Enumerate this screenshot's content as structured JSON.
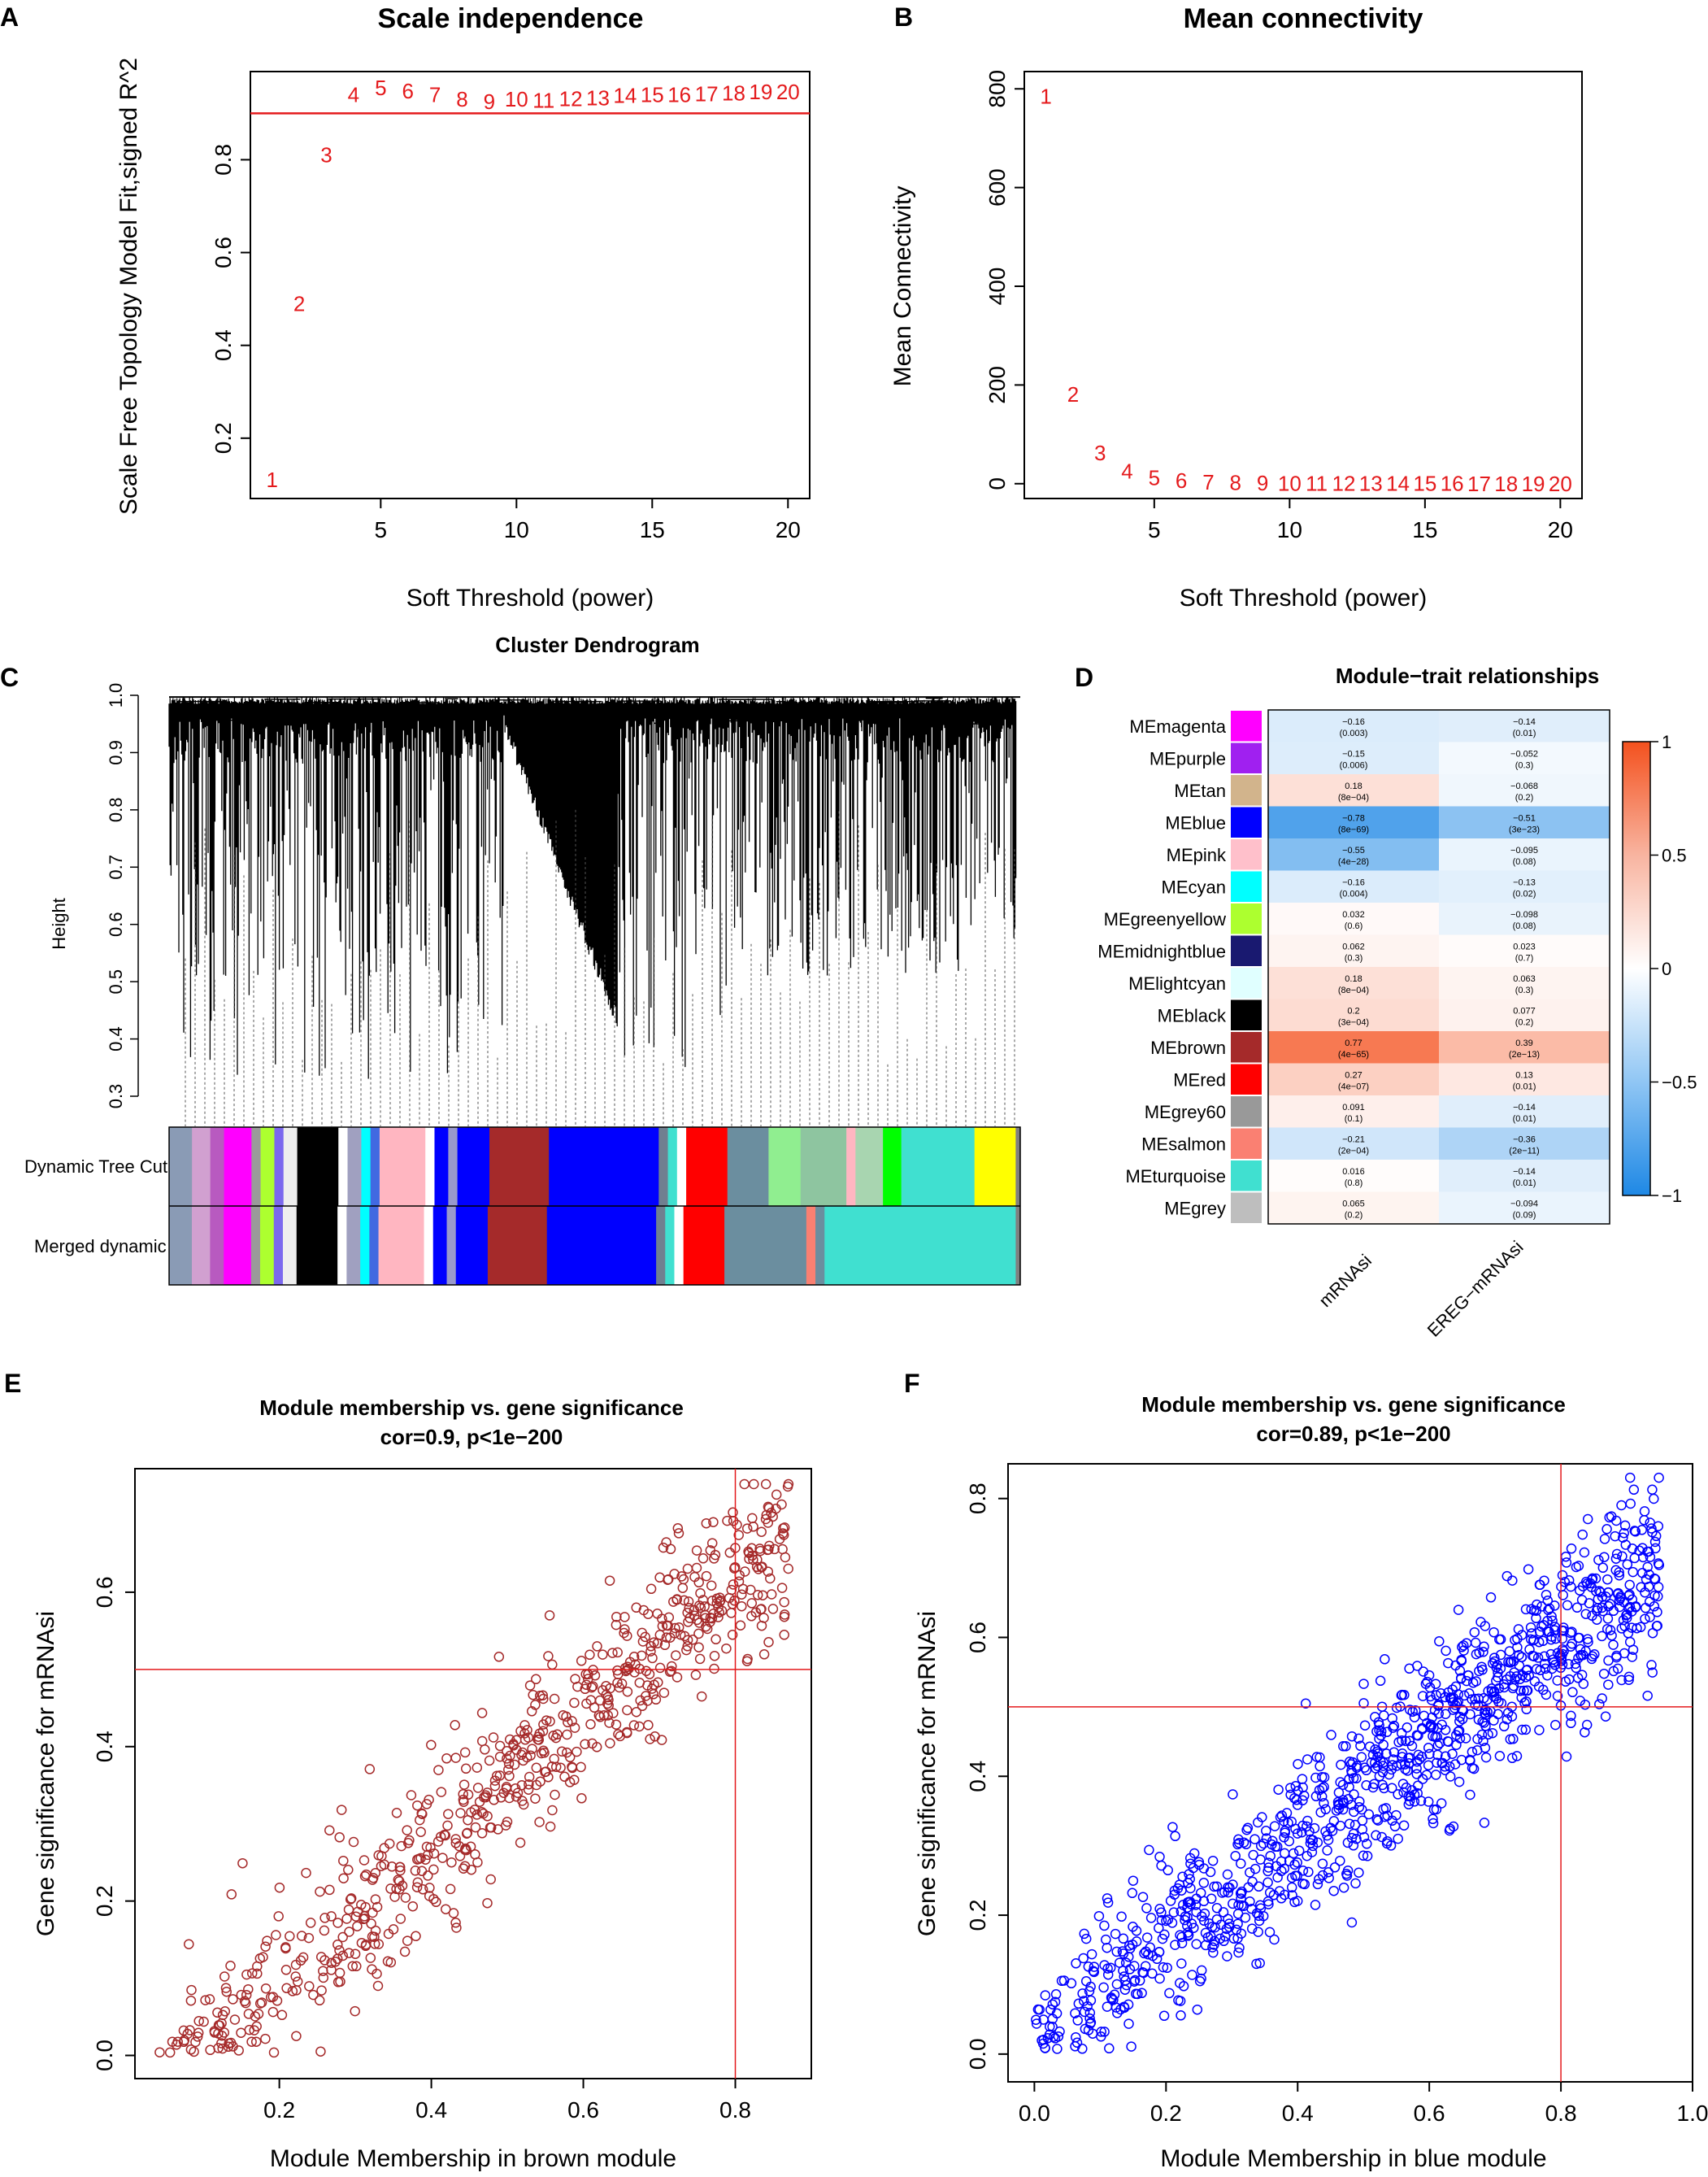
{
  "chart_data": [
    {
      "panel": "A",
      "type": "scatter",
      "title": "Scale independence",
      "xlabel": "Soft Threshold (power)",
      "ylabel": "Scale Free Topology Model Fit,signed R^2",
      "xticks": [
        5,
        10,
        15,
        20
      ],
      "yticks": [
        0.2,
        0.4,
        0.6,
        0.8
      ],
      "xlim": [
        0.2,
        20.8
      ],
      "ylim": [
        0.07,
        0.99
      ],
      "hline": 0.9,
      "points": [
        {
          "label": "1",
          "x": 1,
          "y": 0.11
        },
        {
          "label": "2",
          "x": 2,
          "y": 0.49
        },
        {
          "label": "3",
          "x": 3,
          "y": 0.81
        },
        {
          "label": "4",
          "x": 4,
          "y": 0.94
        },
        {
          "label": "5",
          "x": 5,
          "y": 0.955
        },
        {
          "label": "6",
          "x": 6,
          "y": 0.948
        },
        {
          "label": "7",
          "x": 7,
          "y": 0.94
        },
        {
          "label": "8",
          "x": 8,
          "y": 0.93
        },
        {
          "label": "9",
          "x": 9,
          "y": 0.925
        },
        {
          "label": "10",
          "x": 10,
          "y": 0.93
        },
        {
          "label": "11",
          "x": 11,
          "y": 0.928
        },
        {
          "label": "12",
          "x": 12,
          "y": 0.931
        },
        {
          "label": "13",
          "x": 13,
          "y": 0.933
        },
        {
          "label": "14",
          "x": 14,
          "y": 0.938
        },
        {
          "label": "15",
          "x": 15,
          "y": 0.94
        },
        {
          "label": "16",
          "x": 16,
          "y": 0.94
        },
        {
          "label": "17",
          "x": 17,
          "y": 0.942
        },
        {
          "label": "18",
          "x": 18,
          "y": 0.944
        },
        {
          "label": "19",
          "x": 19,
          "y": 0.946
        },
        {
          "label": "20",
          "x": 20,
          "y": 0.946
        }
      ]
    },
    {
      "panel": "B",
      "type": "scatter",
      "title": "Mean connectivity",
      "xlabel": "Soft Threshold (power)",
      "ylabel": "Mean Connectivity",
      "xticks": [
        5,
        10,
        15,
        20
      ],
      "yticks": [
        0,
        200,
        400,
        600,
        800
      ],
      "xlim": [
        0.2,
        20.8
      ],
      "ylim": [
        -30,
        835
      ],
      "points": [
        {
          "label": "1",
          "x": 1,
          "y": 785
        },
        {
          "label": "2",
          "x": 2,
          "y": 181
        },
        {
          "label": "3",
          "x": 3,
          "y": 62
        },
        {
          "label": "4",
          "x": 4,
          "y": 25
        },
        {
          "label": "5",
          "x": 5,
          "y": 12
        },
        {
          "label": "6",
          "x": 6,
          "y": 6
        },
        {
          "label": "7",
          "x": 7,
          "y": 3
        },
        {
          "label": "8",
          "x": 8,
          "y": 2
        },
        {
          "label": "9",
          "x": 9,
          "y": 1
        },
        {
          "label": "10",
          "x": 10,
          "y": 0.6
        },
        {
          "label": "11",
          "x": 11,
          "y": 0.4
        },
        {
          "label": "12",
          "x": 12,
          "y": 0.3
        },
        {
          "label": "13",
          "x": 13,
          "y": 0.2
        },
        {
          "label": "14",
          "x": 14,
          "y": 0.1
        },
        {
          "label": "15",
          "x": 15,
          "y": 0.1
        },
        {
          "label": "16",
          "x": 16,
          "y": 0.1
        },
        {
          "label": "17",
          "x": 17,
          "y": 0
        },
        {
          "label": "18",
          "x": 18,
          "y": 0
        },
        {
          "label": "19",
          "x": 19,
          "y": 0
        },
        {
          "label": "20",
          "x": 20,
          "y": 0
        }
      ]
    },
    {
      "panel": "C",
      "type": "other",
      "title": "Cluster Dendrogram",
      "ylabel": "Height",
      "yticks": [
        0.3,
        0.4,
        0.5,
        0.6,
        0.7,
        0.8,
        0.9,
        1.0
      ],
      "ylim": [
        0.3,
        1.0
      ],
      "color_rows": [
        "Dynamic Tree Cut",
        "Merged dynamic"
      ],
      "dynamic_segments": [
        {
          "color": "#8a9bb5",
          "w": 5
        },
        {
          "color": "#d1a0d0",
          "w": 4
        },
        {
          "color": "#b85ac0",
          "w": 3
        },
        {
          "color": "#ff00ff",
          "w": 6
        },
        {
          "color": "#9a9a9a",
          "w": 2
        },
        {
          "color": "#adff2f",
          "w": 3
        },
        {
          "color": "#7b68ee",
          "w": 2
        },
        {
          "color": "#eeeeee",
          "w": 3
        },
        {
          "color": "#000000",
          "w": 9
        },
        {
          "color": "#ffffff",
          "w": 2
        },
        {
          "color": "#a0a0c0",
          "w": 3
        },
        {
          "color": "#00ffff",
          "w": 2
        },
        {
          "color": "#4169e1",
          "w": 2
        },
        {
          "color": "#ffb6c1",
          "w": 10
        },
        {
          "color": "#ffffff",
          "w": 2
        },
        {
          "color": "#0000ff",
          "w": 3
        },
        {
          "color": "#9999cc",
          "w": 2
        },
        {
          "color": "#0000ff",
          "w": 7
        },
        {
          "color": "#a52a2a",
          "w": 13
        },
        {
          "color": "#0000ff",
          "w": 24
        },
        {
          "color": "#708090",
          "w": 2
        },
        {
          "color": "#40e0d0",
          "w": 2
        },
        {
          "color": "#ffffff",
          "w": 2
        },
        {
          "color": "#ff0000",
          "w": 9
        },
        {
          "color": "#6b8e9f",
          "w": 9
        },
        {
          "color": "#90ee90",
          "w": 7
        },
        {
          "color": "#8ec5a0",
          "w": 10
        },
        {
          "color": "#ffb6c1",
          "w": 2
        },
        {
          "color": "#a8d5b0",
          "w": 6
        },
        {
          "color": "#00ff00",
          "w": 4
        },
        {
          "color": "#40e0d0",
          "w": 16
        },
        {
          "color": "#ffff00",
          "w": 9
        },
        {
          "color": "#808080",
          "w": 1
        }
      ],
      "merged_segments": [
        {
          "color": "#8a9bb5",
          "w": 5
        },
        {
          "color": "#d1a0d0",
          "w": 4
        },
        {
          "color": "#b85ac0",
          "w": 3
        },
        {
          "color": "#ff00ff",
          "w": 6
        },
        {
          "color": "#9a9a9a",
          "w": 2
        },
        {
          "color": "#adff2f",
          "w": 3
        },
        {
          "color": "#7b68ee",
          "w": 2
        },
        {
          "color": "#eeeeee",
          "w": 3
        },
        {
          "color": "#000000",
          "w": 9
        },
        {
          "color": "#ffffff",
          "w": 2
        },
        {
          "color": "#a0a0c0",
          "w": 3
        },
        {
          "color": "#00ffff",
          "w": 2
        },
        {
          "color": "#4169e1",
          "w": 2
        },
        {
          "color": "#ffb6c1",
          "w": 10
        },
        {
          "color": "#ffffff",
          "w": 2
        },
        {
          "color": "#0000ff",
          "w": 3
        },
        {
          "color": "#9999cc",
          "w": 2
        },
        {
          "color": "#0000ff",
          "w": 7
        },
        {
          "color": "#a52a2a",
          "w": 13
        },
        {
          "color": "#0000ff",
          "w": 24
        },
        {
          "color": "#708090",
          "w": 2
        },
        {
          "color": "#40e0d0",
          "w": 2
        },
        {
          "color": "#ffffff",
          "w": 2
        },
        {
          "color": "#ff0000",
          "w": 9
        },
        {
          "color": "#6b8e9f",
          "w": 18
        },
        {
          "color": "#fa8072",
          "w": 2
        },
        {
          "color": "#6b8e9f",
          "w": 2
        },
        {
          "color": "#40e0d0",
          "w": 42
        },
        {
          "color": "#808080",
          "w": 1
        }
      ]
    },
    {
      "panel": "D",
      "type": "heatmap",
      "title": "Module−trait relationships",
      "columns": [
        "mRNAsi",
        "EREG−mRNAsi"
      ],
      "legend_ticks": [
        1,
        0.5,
        0,
        -0.5,
        -1
      ],
      "legend_tick_labels": [
        "1",
        "0.5",
        "0",
        "−0.5",
        "−1"
      ],
      "rows": [
        {
          "name": "MEmagenta",
          "color": "#ff00ff",
          "values": [
            -0.16,
            -0.14
          ],
          "labels": [
            "−0.16",
            "−0.14"
          ],
          "pvals": [
            "(0.003)",
            "(0.01)"
          ]
        },
        {
          "name": "MEpurple",
          "color": "#a020f0",
          "values": [
            -0.15,
            -0.052
          ],
          "labels": [
            "−0.15",
            "−0.052"
          ],
          "pvals": [
            "(0.006)",
            "(0.3)"
          ]
        },
        {
          "name": "MEtan",
          "color": "#d2b48c",
          "values": [
            0.18,
            -0.068
          ],
          "labels": [
            "0.18",
            "−0.068"
          ],
          "pvals": [
            "(8e−04)",
            "(0.2)"
          ]
        },
        {
          "name": "MEblue",
          "color": "#0000ff",
          "values": [
            -0.78,
            -0.51
          ],
          "labels": [
            "−0.78",
            "−0.51"
          ],
          "pvals": [
            "(8e−69)",
            "(3e−23)"
          ]
        },
        {
          "name": "MEpink",
          "color": "#ffc0cb",
          "values": [
            -0.55,
            -0.095
          ],
          "labels": [
            "−0.55",
            "−0.095"
          ],
          "pvals": [
            "(4e−28)",
            "(0.08)"
          ]
        },
        {
          "name": "MEcyan",
          "color": "#00ffff",
          "values": [
            -0.16,
            -0.13
          ],
          "labels": [
            "−0.16",
            "−0.13"
          ],
          "pvals": [
            "(0.004)",
            "(0.02)"
          ]
        },
        {
          "name": "MEgreenyellow",
          "color": "#adff2f",
          "values": [
            0.032,
            -0.098
          ],
          "labels": [
            "0.032",
            "−0.098"
          ],
          "pvals": [
            "(0.6)",
            "(0.08)"
          ]
        },
        {
          "name": "MEmidnightblue",
          "color": "#191970",
          "values": [
            0.062,
            0.023
          ],
          "labels": [
            "0.062",
            "0.023"
          ],
          "pvals": [
            "(0.3)",
            "(0.7)"
          ]
        },
        {
          "name": "MElightcyan",
          "color": "#e0ffff",
          "values": [
            0.18,
            0.063
          ],
          "labels": [
            "0.18",
            "0.063"
          ],
          "pvals": [
            "(8e−04)",
            "(0.3)"
          ]
        },
        {
          "name": "MEblack",
          "color": "#000000",
          "values": [
            0.2,
            0.077
          ],
          "labels": [
            "0.2",
            "0.077"
          ],
          "pvals": [
            "(3e−04)",
            "(0.2)"
          ]
        },
        {
          "name": "MEbrown",
          "color": "#a52a2a",
          "values": [
            0.77,
            0.39
          ],
          "labels": [
            "0.77",
            "0.39"
          ],
          "pvals": [
            "(4e−65)",
            "(2e−13)"
          ]
        },
        {
          "name": "MEred",
          "color": "#ff0000",
          "values": [
            0.27,
            0.13
          ],
          "labels": [
            "0.27",
            "0.13"
          ],
          "pvals": [
            "(4e−07)",
            "(0.01)"
          ]
        },
        {
          "name": "MEgrey60",
          "color": "#999999",
          "values": [
            0.091,
            -0.14
          ],
          "labels": [
            "0.091",
            "−0.14"
          ],
          "pvals": [
            "(0.1)",
            "(0.01)"
          ]
        },
        {
          "name": "MEsalmon",
          "color": "#fa8072",
          "values": [
            -0.21,
            -0.36
          ],
          "labels": [
            "−0.21",
            "−0.36"
          ],
          "pvals": [
            "(2e−04)",
            "(2e−11)"
          ]
        },
        {
          "name": "MEturquoise",
          "color": "#40e0d0",
          "values": [
            0.016,
            -0.14
          ],
          "labels": [
            "0.016",
            "−0.14"
          ],
          "pvals": [
            "(0.8)",
            "(0.01)"
          ]
        },
        {
          "name": "MEgrey",
          "color": "#bebebe",
          "values": [
            0.065,
            -0.094
          ],
          "labels": [
            "0.065",
            "−0.094"
          ],
          "pvals": [
            "(0.2)",
            "(0.09)"
          ]
        }
      ]
    },
    {
      "panel": "E",
      "type": "scatter",
      "title": "Module membership vs. gene significance",
      "subtitle": "cor=0.9, p<1e−200",
      "xlabel": "Module Membership in brown module",
      "ylabel": "Gene significance for  mRNAsi",
      "color": "#a52a2a",
      "xticks": [
        0.2,
        0.4,
        0.6,
        0.8
      ],
      "yticks": [
        0.0,
        0.2,
        0.4,
        0.6
      ],
      "xlim": [
        0.01,
        0.9
      ],
      "ylim": [
        -0.03,
        0.76
      ],
      "vline": 0.8,
      "hline": 0.5,
      "n_points": 700,
      "trend": {
        "x_min": 0.04,
        "x_max": 0.87,
        "slope": 0.88,
        "intercept": -0.08,
        "noise": 0.055
      }
    },
    {
      "panel": "F",
      "type": "scatter",
      "title": "Module membership vs. gene significance",
      "subtitle": "cor=0.89, p<1e−200",
      "xlabel": "Module Membership in blue module",
      "ylabel": "Gene significance for  mRNAsi",
      "color": "#0000ff",
      "xticks": [
        0.0,
        0.2,
        0.4,
        0.6,
        0.8,
        1.0
      ],
      "yticks": [
        0.0,
        0.2,
        0.4,
        0.6,
        0.8
      ],
      "xlim": [
        -0.04,
        1.0
      ],
      "ylim": [
        -0.04,
        0.85
      ],
      "vline": 0.8,
      "hline": 0.5,
      "n_points": 1100,
      "trend": {
        "x_min": 0.0,
        "x_max": 0.95,
        "slope": 0.72,
        "intercept": 0.02,
        "noise": 0.06
      }
    }
  ],
  "labels": {
    "panel_a": "A",
    "panel_b": "B",
    "panel_c": "C",
    "panel_d": "D",
    "panel_e": "E",
    "panel_f": "F"
  }
}
